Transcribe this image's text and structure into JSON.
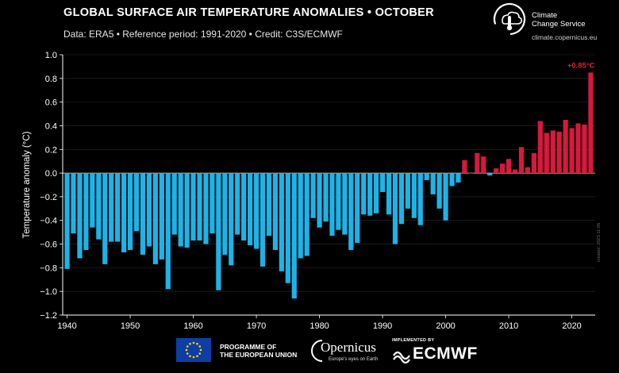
{
  "header": {
    "title": "GLOBAL SURFACE AIR TEMPERATURE ANOMALIES • OCTOBER",
    "subtitle": "Data: ERA5 • Reference period: 1991-2020 • Credit: C3S/ECMWF"
  },
  "brand": {
    "name_line1": "Climate",
    "name_line2": "Change Service",
    "url": "climate.copernicus.eu"
  },
  "footer": {
    "eu_line1": "PROGRAMME OF",
    "eu_line2": "THE EUROPEAN UNION",
    "copernicus_word": "Opernicus",
    "copernicus_tagline": "Europe's eyes on Earth",
    "implemented_by": "IMPLEMENTED BY",
    "ecmwf": "ECMWF"
  },
  "side_stamp": "created: 2023-11-06",
  "colors": {
    "negative": "#1bb4e8",
    "positive": "#d8183c",
    "background": "#000000",
    "annotation": "#e0203a"
  },
  "chart_data": {
    "type": "bar",
    "ylabel": "Temperature anomaly (°C)",
    "xlabel": "",
    "ylim": [
      -1.2,
      1.0
    ],
    "yticks": [
      -1.2,
      -1.0,
      -0.8,
      -0.6,
      -0.4,
      -0.2,
      0.0,
      0.2,
      0.4,
      0.6,
      0.8,
      1.0
    ],
    "ytick_labels": [
      "−1.2",
      "−1.0",
      "−0.8",
      "−0.6",
      "−0.4",
      "−0.2",
      "0.0",
      "0.2",
      "0.4",
      "0.6",
      "0.8",
      "1.0"
    ],
    "xticks": [
      1940,
      1950,
      1960,
      1970,
      1980,
      1990,
      2000,
      2010,
      2020
    ],
    "x": [
      1940,
      1941,
      1942,
      1943,
      1944,
      1945,
      1946,
      1947,
      1948,
      1949,
      1950,
      1951,
      1952,
      1953,
      1954,
      1955,
      1956,
      1957,
      1958,
      1959,
      1960,
      1961,
      1962,
      1963,
      1964,
      1965,
      1966,
      1967,
      1968,
      1969,
      1970,
      1971,
      1972,
      1973,
      1974,
      1975,
      1976,
      1977,
      1978,
      1979,
      1980,
      1981,
      1982,
      1983,
      1984,
      1985,
      1986,
      1987,
      1988,
      1989,
      1990,
      1991,
      1992,
      1993,
      1994,
      1995,
      1996,
      1997,
      1998,
      1999,
      2000,
      2001,
      2002,
      2003,
      2004,
      2005,
      2006,
      2007,
      2008,
      2009,
      2010,
      2011,
      2012,
      2013,
      2014,
      2015,
      2016,
      2017,
      2018,
      2019,
      2020,
      2021,
      2022,
      2023
    ],
    "values": [
      -0.81,
      -0.51,
      -0.72,
      -0.65,
      -0.46,
      -0.56,
      -0.77,
      -0.58,
      -0.58,
      -0.67,
      -0.65,
      -0.49,
      -0.69,
      -0.62,
      -0.77,
      -0.73,
      -0.98,
      -0.52,
      -0.62,
      -0.63,
      -0.57,
      -0.57,
      -0.6,
      -0.51,
      -0.99,
      -0.69,
      -0.78,
      -0.52,
      -0.57,
      -0.61,
      -0.64,
      -0.79,
      -0.53,
      -0.65,
      -0.83,
      -0.93,
      -1.06,
      -0.72,
      -0.7,
      -0.38,
      -0.46,
      -0.41,
      -0.53,
      -0.48,
      -0.52,
      -0.65,
      -0.59,
      -0.35,
      -0.36,
      -0.34,
      -0.16,
      -0.35,
      -0.6,
      -0.43,
      -0.3,
      -0.38,
      -0.44,
      -0.06,
      -0.18,
      -0.3,
      -0.4,
      -0.11,
      -0.08,
      0.11,
      0.0,
      0.17,
      0.14,
      -0.02,
      0.04,
      0.08,
      0.12,
      0.03,
      0.22,
      0.05,
      0.17,
      0.44,
      0.34,
      0.36,
      0.35,
      0.45,
      0.38,
      0.42,
      0.41,
      0.85
    ],
    "annotation": {
      "x": 2023,
      "text": "+0.85°C"
    }
  }
}
